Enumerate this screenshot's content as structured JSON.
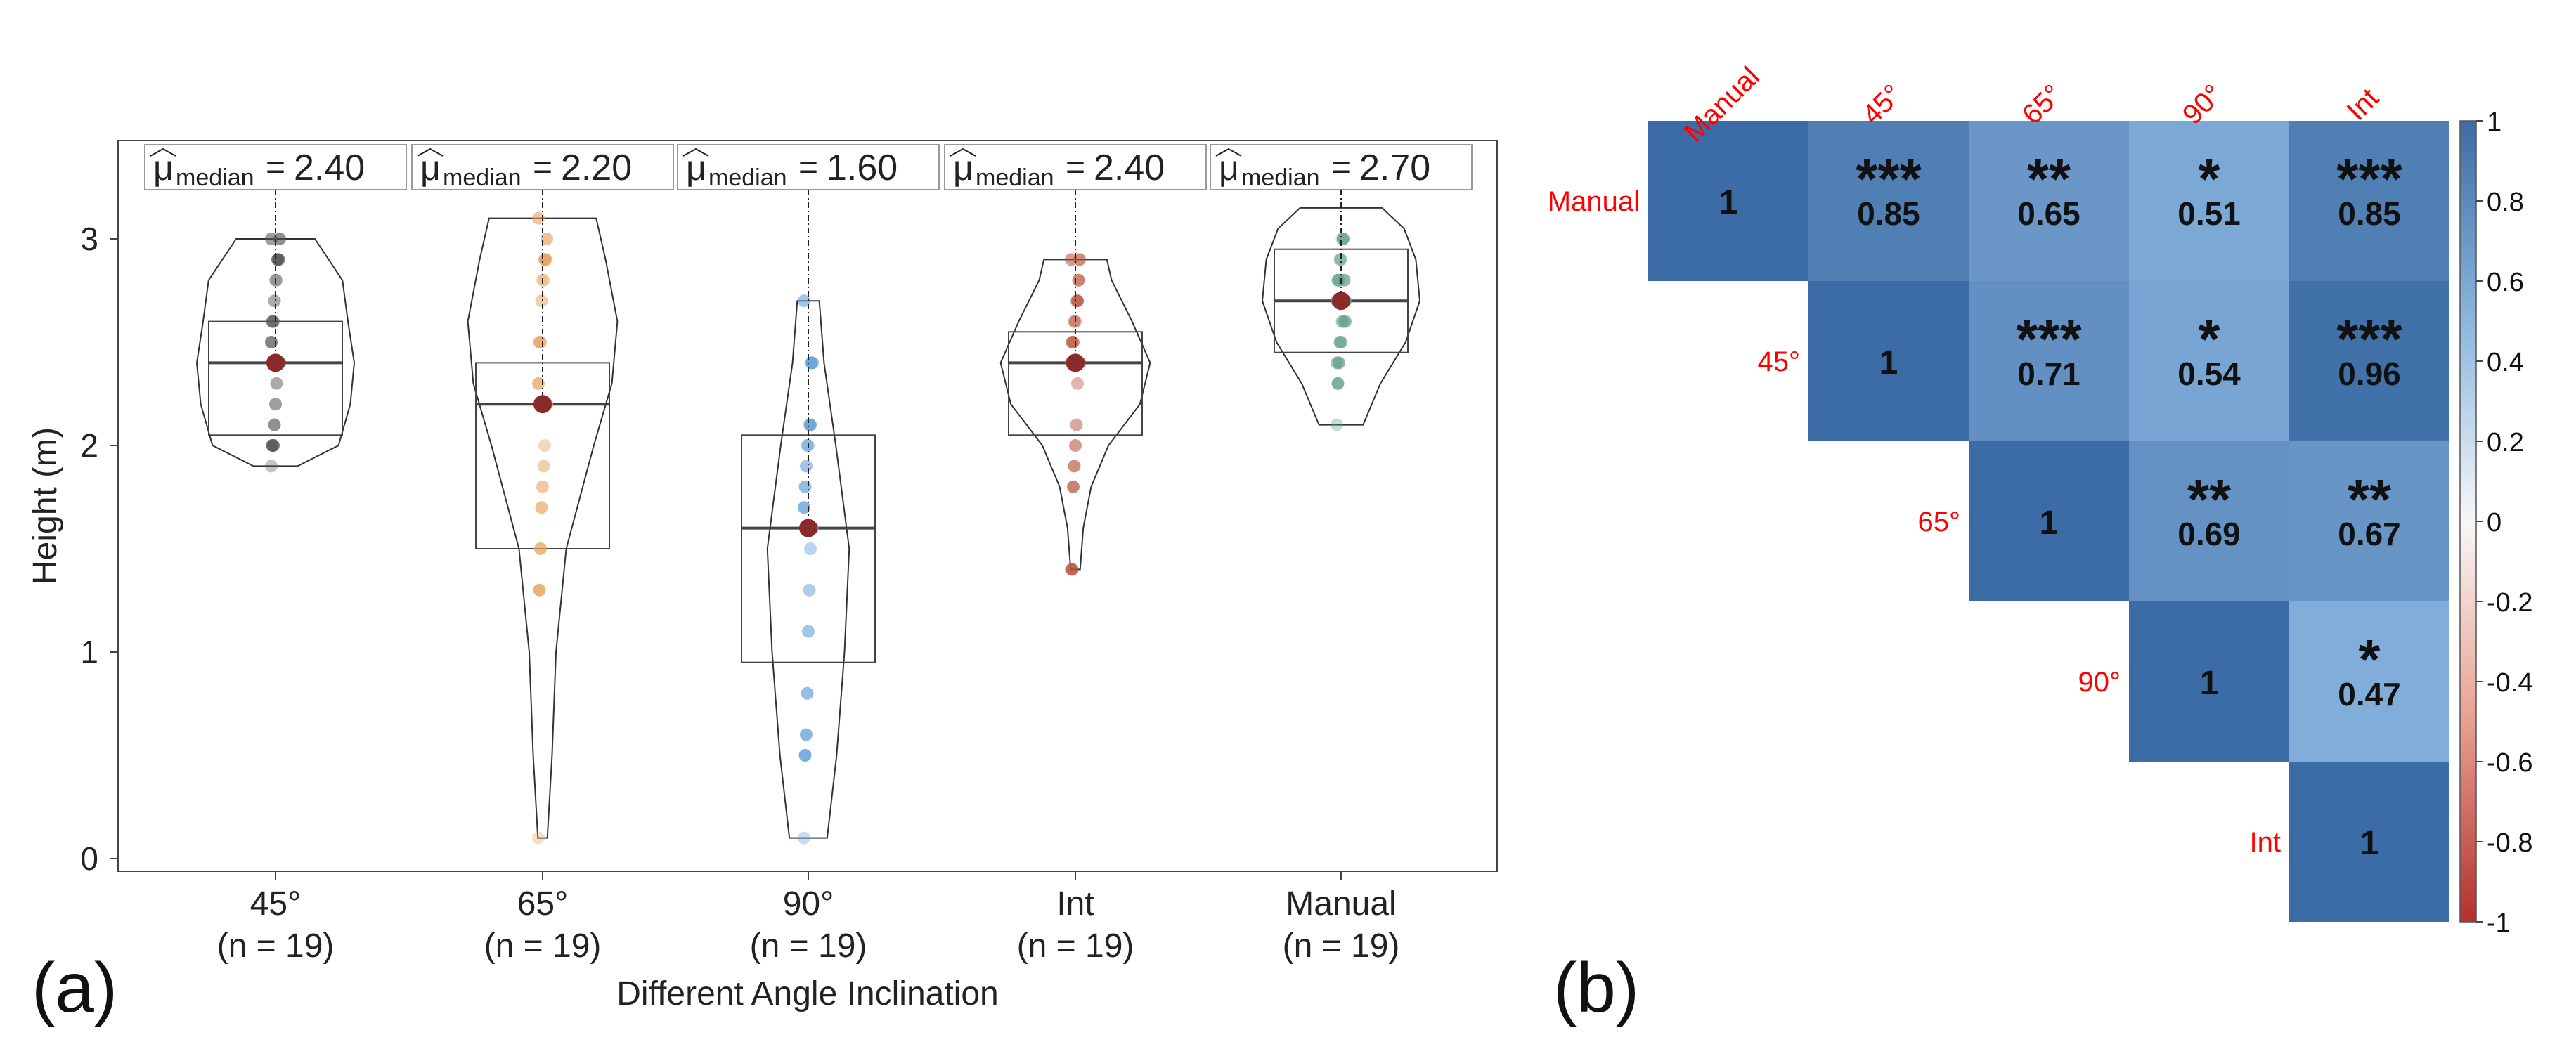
{
  "panel_labels": {
    "a": "(a)",
    "b": "(b)"
  },
  "chart_data": [
    {
      "type": "box-violin",
      "panel": "a",
      "xlabel": "Different Angle Inclination",
      "ylabel": "Height (m)",
      "ylim": [
        0,
        3.4
      ],
      "yticks": [
        "0",
        "1",
        "2",
        "3"
      ],
      "groups": [
        {
          "name": "45°",
          "n_label": "(n = 19)",
          "color": "#555555",
          "median_label": "2.40",
          "median": 2.4,
          "q1": 2.05,
          "q3": 2.6,
          "min": 1.9,
          "max": 3.0,
          "violin": [
            [
              1.9,
              0.28
            ],
            [
              2.0,
              0.8
            ],
            [
              2.2,
              0.95
            ],
            [
              2.4,
              1.0
            ],
            [
              2.6,
              0.92
            ],
            [
              2.8,
              0.85
            ],
            [
              3.0,
              0.5
            ]
          ],
          "points": [
            1.9,
            2.0,
            2.0,
            2.1,
            2.2,
            2.3,
            2.4,
            2.4,
            2.4,
            2.5,
            2.6,
            2.6,
            2.7,
            2.8,
            2.8,
            2.9,
            2.9,
            3.0,
            3.0
          ]
        },
        {
          "name": "65°",
          "n_label": "(n = 19)",
          "color": "#E69F5A",
          "median_label": "2.20",
          "median": 2.2,
          "q1": 1.5,
          "q3": 2.4,
          "min": 0.1,
          "max": 3.1,
          "violin": [
            [
              0.1,
              0.06
            ],
            [
              0.5,
              0.12
            ],
            [
              1.0,
              0.17
            ],
            [
              1.5,
              0.3
            ],
            [
              2.0,
              0.65
            ],
            [
              2.3,
              0.88
            ],
            [
              2.6,
              0.95
            ],
            [
              2.9,
              0.8
            ],
            [
              3.1,
              0.68
            ]
          ],
          "points": [
            0.1,
            1.3,
            1.5,
            1.7,
            1.8,
            1.9,
            2.0,
            2.2,
            2.2,
            2.3,
            2.5,
            2.5,
            2.7,
            2.8,
            2.8,
            2.9,
            2.9,
            3.0,
            3.1
          ]
        },
        {
          "name": "90°",
          "n_label": "(n = 19)",
          "color": "#5B9BD5",
          "median_label": "1.60",
          "median": 1.6,
          "q1": 0.95,
          "q3": 2.05,
          "min": 0.1,
          "max": 2.7,
          "violin": [
            [
              0.1,
              0.24
            ],
            [
              0.5,
              0.36
            ],
            [
              1.0,
              0.46
            ],
            [
              1.5,
              0.52
            ],
            [
              2.0,
              0.35
            ],
            [
              2.4,
              0.2
            ],
            [
              2.7,
              0.14
            ]
          ],
          "points": [
            0.1,
            0.5,
            0.6,
            0.8,
            1.1,
            1.3,
            1.5,
            1.6,
            1.6,
            1.7,
            1.8,
            1.9,
            2.0,
            2.0,
            2.1,
            2.1,
            2.4,
            2.4,
            2.7
          ]
        },
        {
          "name": "Int",
          "n_label": "(n = 19)",
          "color": "#B5533C",
          "median_label": "2.40",
          "median": 2.4,
          "q1": 2.05,
          "q3": 2.55,
          "min": 1.4,
          "max": 2.9,
          "violin": [
            [
              1.4,
              0.06
            ],
            [
              1.6,
              0.1
            ],
            [
              1.8,
              0.2
            ],
            [
              2.0,
              0.42
            ],
            [
              2.2,
              0.82
            ],
            [
              2.4,
              0.95
            ],
            [
              2.6,
              0.72
            ],
            [
              2.8,
              0.46
            ],
            [
              2.9,
              0.4
            ]
          ],
          "points": [
            1.4,
            1.4,
            1.8,
            1.9,
            2.0,
            2.1,
            2.3,
            2.4,
            2.4,
            2.4,
            2.5,
            2.5,
            2.6,
            2.6,
            2.7,
            2.7,
            2.8,
            2.9,
            2.9
          ]
        },
        {
          "name": "Manual",
          "n_label": "(n = 19)",
          "color": "#5F9E86",
          "median_label": "2.70",
          "median": 2.7,
          "q1": 2.45,
          "q3": 2.95,
          "min": 2.1,
          "max": 3.0,
          "violin": [
            [
              2.1,
              0.28
            ],
            [
              2.3,
              0.5
            ],
            [
              2.5,
              0.82
            ],
            [
              2.7,
              1.0
            ],
            [
              2.9,
              0.95
            ],
            [
              3.05,
              0.8
            ],
            [
              3.15,
              0.52
            ]
          ],
          "points": [
            2.1,
            2.3,
            2.4,
            2.5,
            2.5,
            2.6,
            2.6,
            2.7,
            2.7,
            2.7,
            2.8,
            2.8,
            2.9,
            2.9,
            3.0,
            3.0,
            2.8,
            2.6,
            2.4
          ]
        }
      ]
    },
    {
      "type": "heatmap",
      "panel": "b",
      "labels": [
        "Manual",
        "45°",
        "65°",
        "90°",
        "Int"
      ],
      "cells": [
        {
          "row": 0,
          "col": 0,
          "value": 1,
          "text": "1",
          "stars": ""
        },
        {
          "row": 0,
          "col": 1,
          "value": 0.85,
          "text": "0.85",
          "stars": "***"
        },
        {
          "row": 0,
          "col": 2,
          "value": 0.65,
          "text": "0.65",
          "stars": "**"
        },
        {
          "row": 0,
          "col": 3,
          "value": 0.51,
          "text": "0.51",
          "stars": "*"
        },
        {
          "row": 0,
          "col": 4,
          "value": 0.85,
          "text": "0.85",
          "stars": "***"
        },
        {
          "row": 1,
          "col": 1,
          "value": 1,
          "text": "1",
          "stars": ""
        },
        {
          "row": 1,
          "col": 2,
          "value": 0.71,
          "text": "0.71",
          "stars": "***"
        },
        {
          "row": 1,
          "col": 3,
          "value": 0.54,
          "text": "0.54",
          "stars": "*"
        },
        {
          "row": 1,
          "col": 4,
          "value": 0.96,
          "text": "0.96",
          "stars": "***"
        },
        {
          "row": 2,
          "col": 2,
          "value": 1,
          "text": "1",
          "stars": ""
        },
        {
          "row": 2,
          "col": 3,
          "value": 0.69,
          "text": "0.69",
          "stars": "**"
        },
        {
          "row": 2,
          "col": 4,
          "value": 0.67,
          "text": "0.67",
          "stars": "**"
        },
        {
          "row": 3,
          "col": 3,
          "value": 1,
          "text": "1",
          "stars": ""
        },
        {
          "row": 3,
          "col": 4,
          "value": 0.47,
          "text": "0.47",
          "stars": "*"
        },
        {
          "row": 4,
          "col": 4,
          "value": 1,
          "text": "1",
          "stars": ""
        }
      ],
      "colorbar": {
        "range": [
          -1,
          1
        ],
        "ticks": [
          "1",
          "0.8",
          "0.6",
          "0.4",
          "0.2",
          "0",
          "-0.2",
          "-0.4",
          "-0.6",
          "-0.8",
          "-1"
        ],
        "colors": {
          "high": "#4571A8",
          "mid": "#F7F7F7",
          "low": "#B2302E"
        }
      },
      "label_color": "#FF0000"
    }
  ]
}
